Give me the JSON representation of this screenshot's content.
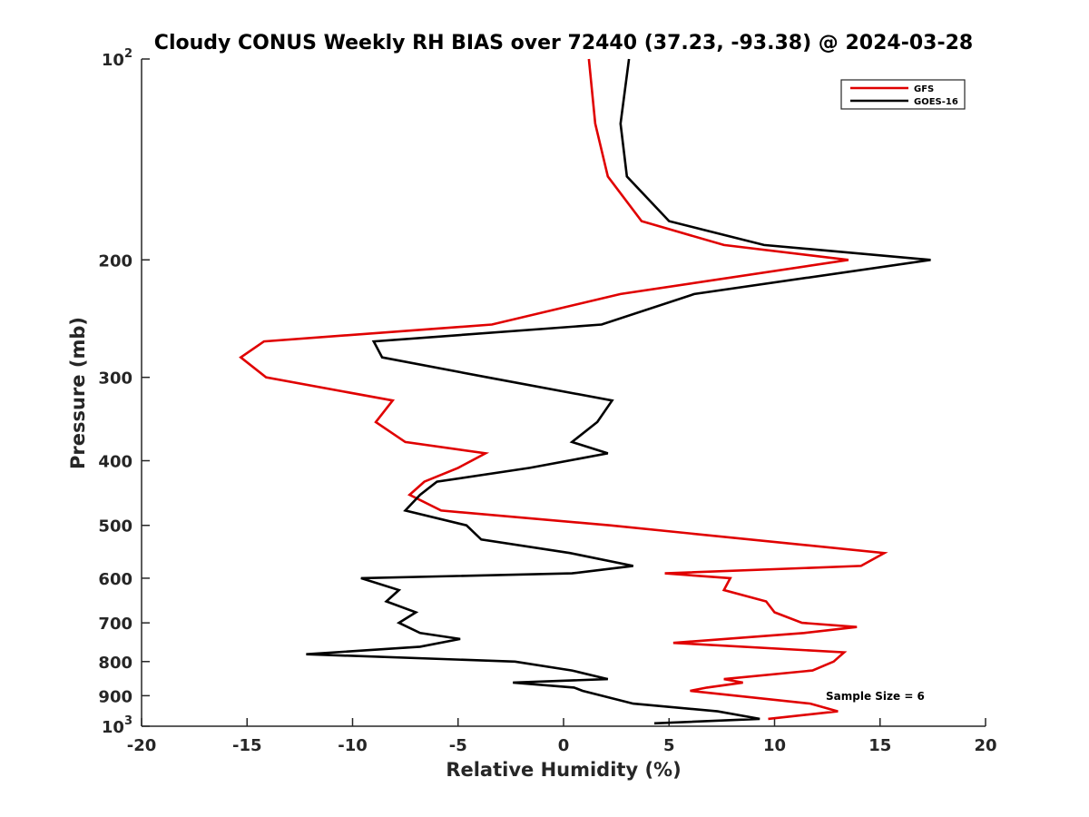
{
  "chart_data": {
    "type": "line",
    "title": "Cloudy CONUS Weekly RH BIAS over 72440 (37.23, -93.38) @ 2024-03-28",
    "xlabel": "Relative Humidity (%)",
    "ylabel": "Pressure (mb)",
    "xlim": [
      -20,
      20
    ],
    "ylim": [
      100,
      1000
    ],
    "y_scale": "log",
    "y_reversed": true,
    "grid": false,
    "legend_position": "top-right",
    "annotation": "Sample Size = 6",
    "x_ticks": [
      {
        "value": -20,
        "label": "-20"
      },
      {
        "value": -15,
        "label": "-15"
      },
      {
        "value": -10,
        "label": "-10"
      },
      {
        "value": -5,
        "label": "-5"
      },
      {
        "value": 0,
        "label": "0"
      },
      {
        "value": 5,
        "label": "5"
      },
      {
        "value": 10,
        "label": "10"
      },
      {
        "value": 15,
        "label": "15"
      },
      {
        "value": 20,
        "label": "20"
      }
    ],
    "y_ticks": [
      {
        "value": 100,
        "label": "10",
        "sup": "2"
      },
      {
        "value": 200,
        "label": "200",
        "sup": ""
      },
      {
        "value": 300,
        "label": "300",
        "sup": ""
      },
      {
        "value": 400,
        "label": "400",
        "sup": ""
      },
      {
        "value": 500,
        "label": "500",
        "sup": ""
      },
      {
        "value": 600,
        "label": "600",
        "sup": ""
      },
      {
        "value": 700,
        "label": "700",
        "sup": ""
      },
      {
        "value": 800,
        "label": "800",
        "sup": ""
      },
      {
        "value": 900,
        "label": "900",
        "sup": ""
      },
      {
        "value": 1000,
        "label": "10",
        "sup": "3"
      }
    ],
    "series": [
      {
        "name": "GFS",
        "color": "#e00000",
        "points": [
          [
            1.2,
            100
          ],
          [
            1.5,
            125
          ],
          [
            2.1,
            150
          ],
          [
            3.7,
            175
          ],
          [
            7.6,
            190
          ],
          [
            13.5,
            200
          ],
          [
            2.7,
            225
          ],
          [
            -3.4,
            250
          ],
          [
            -14.2,
            265
          ],
          [
            -15.3,
            280
          ],
          [
            -14.1,
            300
          ],
          [
            -8.1,
            325
          ],
          [
            -8.9,
            350
          ],
          [
            -7.5,
            375
          ],
          [
            -3.7,
            390
          ],
          [
            -5.0,
            410
          ],
          [
            -6.6,
            430
          ],
          [
            -7.3,
            450
          ],
          [
            -5.8,
            475
          ],
          [
            2.2,
            500
          ],
          [
            15.2,
            550
          ],
          [
            14.1,
            575
          ],
          [
            4.8,
            590
          ],
          [
            7.9,
            600
          ],
          [
            7.6,
            625
          ],
          [
            9.6,
            650
          ],
          [
            10.0,
            675
          ],
          [
            11.3,
            700
          ],
          [
            13.9,
            710
          ],
          [
            11.4,
            725
          ],
          [
            5.2,
            750
          ],
          [
            13.3,
            775
          ],
          [
            12.8,
            800
          ],
          [
            11.8,
            825
          ],
          [
            7.6,
            850
          ],
          [
            8.5,
            860
          ],
          [
            6.8,
            875
          ],
          [
            6.0,
            885
          ],
          [
            11.7,
            925
          ],
          [
            13.0,
            950
          ],
          [
            9.7,
            975
          ]
        ]
      },
      {
        "name": "GOES-16",
        "color": "#000000",
        "points": [
          [
            3.1,
            100
          ],
          [
            2.7,
            125
          ],
          [
            3.0,
            150
          ],
          [
            5.0,
            175
          ],
          [
            9.5,
            190
          ],
          [
            17.4,
            200
          ],
          [
            6.2,
            225
          ],
          [
            1.8,
            250
          ],
          [
            -9.0,
            265
          ],
          [
            -8.6,
            280
          ],
          [
            -3.6,
            300
          ],
          [
            2.3,
            325
          ],
          [
            1.6,
            350
          ],
          [
            0.4,
            375
          ],
          [
            2.1,
            390
          ],
          [
            -1.6,
            410
          ],
          [
            -6.0,
            430
          ],
          [
            -6.8,
            450
          ],
          [
            -7.5,
            475
          ],
          [
            -4.6,
            500
          ],
          [
            -3.9,
            525
          ],
          [
            0.3,
            550
          ],
          [
            3.3,
            575
          ],
          [
            0.4,
            590
          ],
          [
            -9.6,
            600
          ],
          [
            -7.8,
            625
          ],
          [
            -8.4,
            650
          ],
          [
            -7.0,
            675
          ],
          [
            -7.8,
            700
          ],
          [
            -6.8,
            725
          ],
          [
            -4.9,
            740
          ],
          [
            -6.8,
            760
          ],
          [
            -12.2,
            780
          ],
          [
            -2.3,
            800
          ],
          [
            0.4,
            825
          ],
          [
            2.1,
            850
          ],
          [
            -2.4,
            860
          ],
          [
            0.5,
            875
          ],
          [
            0.9,
            885
          ],
          [
            3.3,
            925
          ],
          [
            7.3,
            950
          ],
          [
            9.3,
            975
          ],
          [
            4.3,
            990
          ]
        ]
      }
    ]
  }
}
